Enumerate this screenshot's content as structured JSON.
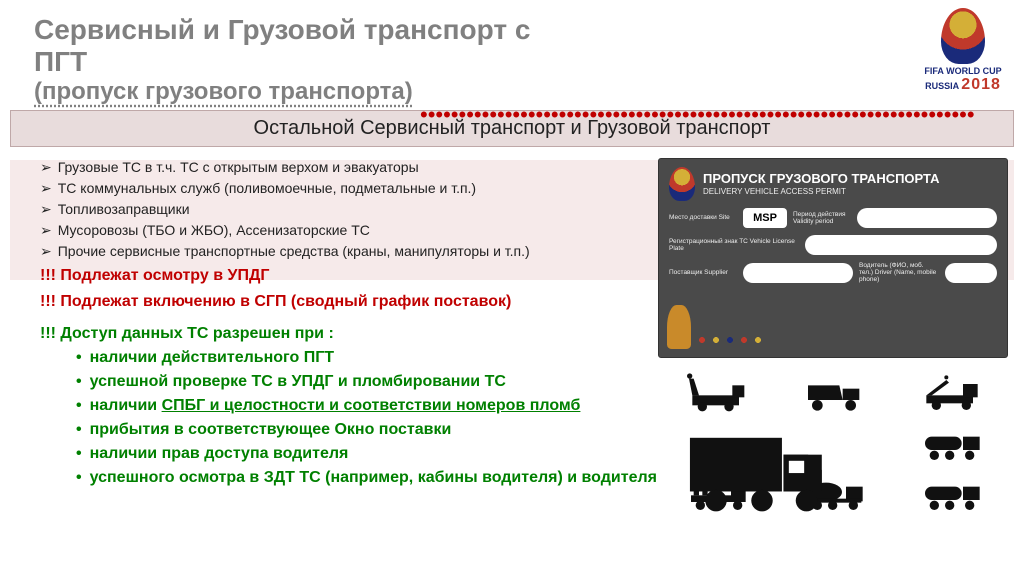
{
  "title": {
    "line1": "Сервисный и Грузовой транспорт с",
    "line2": "ПГТ",
    "line3": "(пропуск грузового транспорта)"
  },
  "logo": {
    "caption": "FIFA WORLD CUP",
    "brand": "RUSSIA",
    "year": "2018"
  },
  "banner": "Остальной Сервисный транспорт и Грузовой транспорт",
  "list": [
    "Грузовые ТС в т.ч. ТС с открытым верхом и  эвакуаторы",
    "ТС коммунальных служб (поливомоечные, подметальные и т.п.)",
    "Топливозаправщики",
    "Мусоровозы (ТБО и ЖБО), Ассенизаторские ТС",
    "Прочие сервисные транспортные средства (краны, манипуляторы и т.п.)"
  ],
  "redlines": [
    "!!! Подлежат осмотру в УПДГ",
    "!!! Подлежат включению в СГП (сводный график поставок)"
  ],
  "green": {
    "head": "!!! Доступ данных ТС разрешен при :",
    "items": [
      {
        "pre": "наличии действительного ПГТ",
        "u": "",
        "post": ""
      },
      {
        "pre": "успешной проверке ТС в УПДГ  и пломбировании ТС",
        "u": "",
        "post": ""
      },
      {
        "pre": "наличии ",
        "u": "СПБГ и целостности и соответствии номеров пломб",
        "post": ""
      },
      {
        "pre": "прибытия в соответствующее Окно поставки",
        "u": "",
        "post": ""
      },
      {
        "pre": "наличии прав доступа водителя",
        "u": "",
        "post": ""
      },
      {
        "pre": "успешного осмотра в ЗДТ ТС (например, кабины водителя)  и водителя",
        "u": "",
        "post": ""
      }
    ]
  },
  "permit": {
    "title": "ПРОПУСК ГРУЗОВОГО ТРАНСПОРТА",
    "subtitle": "DELIVERY VEHICLE ACCESS PERMIT",
    "site": "MSP",
    "labels": {
      "site": "Место доставки\nSite",
      "validity": "Период действия\nValidity period",
      "plate": "Регистрационный знак ТС\nVehicle License Plate",
      "supplier": "Поставщик\nSupplier",
      "driver": "Водитель (ФИО, моб. тел.)\nDriver (Name, mobile phone)"
    }
  },
  "colors": {
    "title_grey": "#808080",
    "red": "#c00000",
    "green": "#008000",
    "banner_bg": "#e8dcdc",
    "banner_border": "#bfa8a8",
    "pink_band": "#f6eaea",
    "permit_bg": "#4a4a4a",
    "truck_black": "#111111"
  }
}
